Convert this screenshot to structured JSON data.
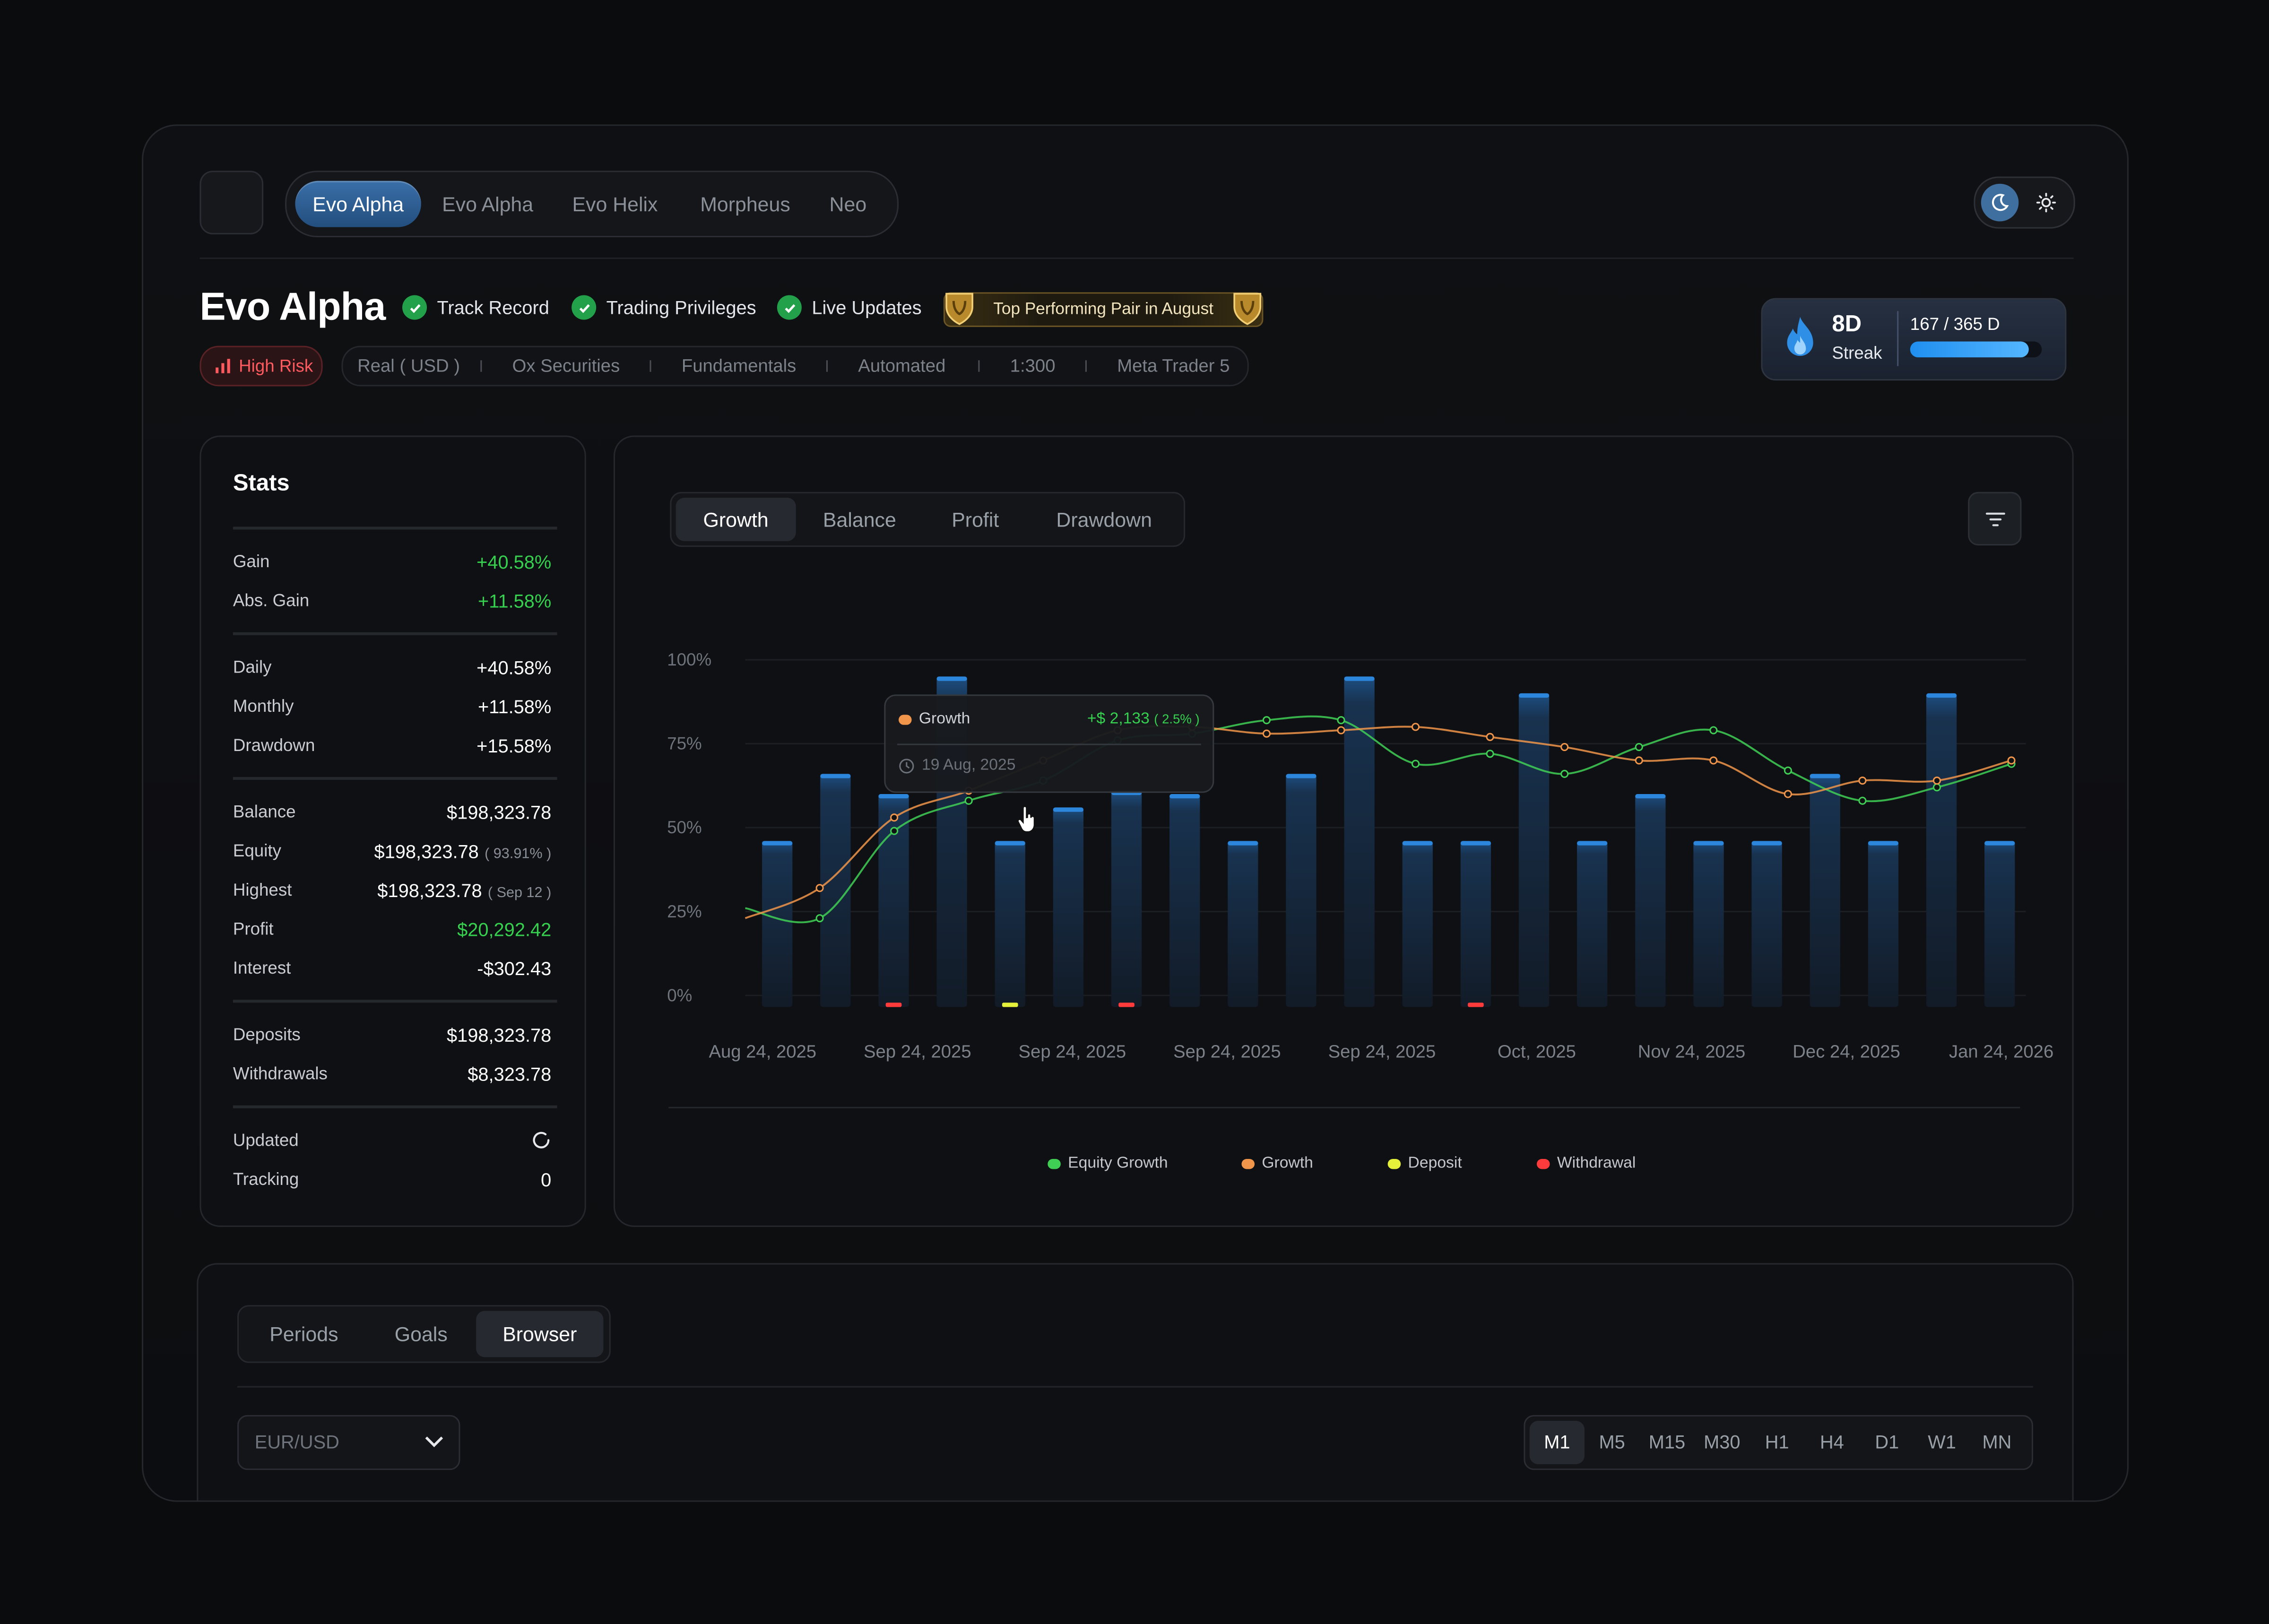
{
  "nav": {
    "tabs": [
      "Evo Alpha",
      "Evo Alpha",
      "Evo Helix",
      "Morpheus",
      "Neo"
    ],
    "active_tab": 0
  },
  "header": {
    "title": "Evo Alpha",
    "checks": [
      "Track Record",
      "Trading Privileges",
      "Live Updates"
    ],
    "award": "Top Performing Pair in August",
    "risk": "High Risk",
    "meta": [
      "Real ( USD )",
      "Ox Securities",
      "Fundamentals",
      "Automated",
      "1:300",
      "Meta Trader 5"
    ]
  },
  "streak": {
    "days": "8D",
    "label": "Streak",
    "progress_text": "167 / 365 D",
    "progress": 0.9
  },
  "stats": {
    "title": "Stats",
    "groups": [
      [
        {
          "label": "Gain",
          "value": "+40.58%",
          "green": true
        },
        {
          "label": "Abs. Gain",
          "value": "+11.58%",
          "green": true
        }
      ],
      [
        {
          "label": "Daily",
          "value": "+40.58%"
        },
        {
          "label": "Monthly",
          "value": "+11.58%"
        },
        {
          "label": "Drawdown",
          "value": "+15.58%"
        }
      ],
      [
        {
          "label": "Balance",
          "value": "$198,323.78"
        },
        {
          "label": "Equity",
          "value": "$198,323.78",
          "sub": "( 93.91% )"
        },
        {
          "label": "Highest",
          "value": "$198,323.78",
          "sub": "( Sep 12 )"
        },
        {
          "label": "Profit",
          "value": "$20,292.42",
          "green": true
        },
        {
          "label": "Interest",
          "value": "-$302.43"
        }
      ],
      [
        {
          "label": "Deposits",
          "value": "$198,323.78"
        },
        {
          "label": "Withdrawals",
          "value": "$8,323.78"
        }
      ],
      [
        {
          "label": "Updated",
          "value": "",
          "spinner": true
        },
        {
          "label": "Tracking",
          "value": "0"
        }
      ]
    ]
  },
  "chart_tabs": [
    "Growth",
    "Balance",
    "Profit",
    "Drawdown"
  ],
  "tooltip": {
    "series": "Growth",
    "value": "+$ 2,133",
    "pct": "( 2.5% )",
    "date": "19 Aug, 2025"
  },
  "chart_data": {
    "type": "bar",
    "y_ticks": [
      "100%",
      "75%",
      "50%",
      "25%",
      "0%"
    ],
    "ylim": [
      0,
      100
    ],
    "x_ticks": [
      "Aug 24, 2025",
      "Sep 24, 2025",
      "Sep 24, 2025",
      "Sep 24, 2025",
      "Sep 24, 2025",
      "Oct, 2025",
      "Nov 24, 2025",
      "Dec 24, 2025",
      "Jan 24, 2026"
    ],
    "bars": [
      46,
      66,
      60,
      95,
      46,
      56,
      61,
      60,
      46,
      66,
      95,
      46,
      46,
      90,
      46,
      60,
      46,
      46,
      66,
      46,
      90,
      46
    ],
    "series": [
      {
        "name": "Equity Growth",
        "color": "#3fcf55",
        "values": [
          26,
          23,
          49,
          58,
          64,
          76,
          78,
          82,
          82,
          69,
          72,
          66,
          74,
          79,
          67,
          58,
          62,
          69
        ]
      },
      {
        "name": "Growth",
        "color": "#f0954a",
        "values": [
          23,
          32,
          53,
          61,
          70,
          79,
          80,
          78,
          79,
          80,
          77,
          74,
          70,
          70,
          60,
          64,
          64,
          70
        ]
      },
      {
        "name": "Deposit",
        "color": "#e5f03a",
        "values": []
      },
      {
        "name": "Withdrawal",
        "color": "#ff3b3b",
        "values": []
      }
    ],
    "markers": [
      {
        "bar": 2,
        "type": "Withdrawal"
      },
      {
        "bar": 4,
        "type": "Deposit"
      },
      {
        "bar": 6,
        "type": "Withdrawal"
      },
      {
        "bar": 12,
        "type": "Withdrawal"
      }
    ]
  },
  "bottom": {
    "tabs": [
      "Periods",
      "Goals",
      "Browser"
    ],
    "active_tab": 2,
    "pair_select": "EUR/USD",
    "timeframes": [
      "M1",
      "M5",
      "M15",
      "M30",
      "H1",
      "H4",
      "D1",
      "W1",
      "MN"
    ],
    "active_tf": 0
  }
}
